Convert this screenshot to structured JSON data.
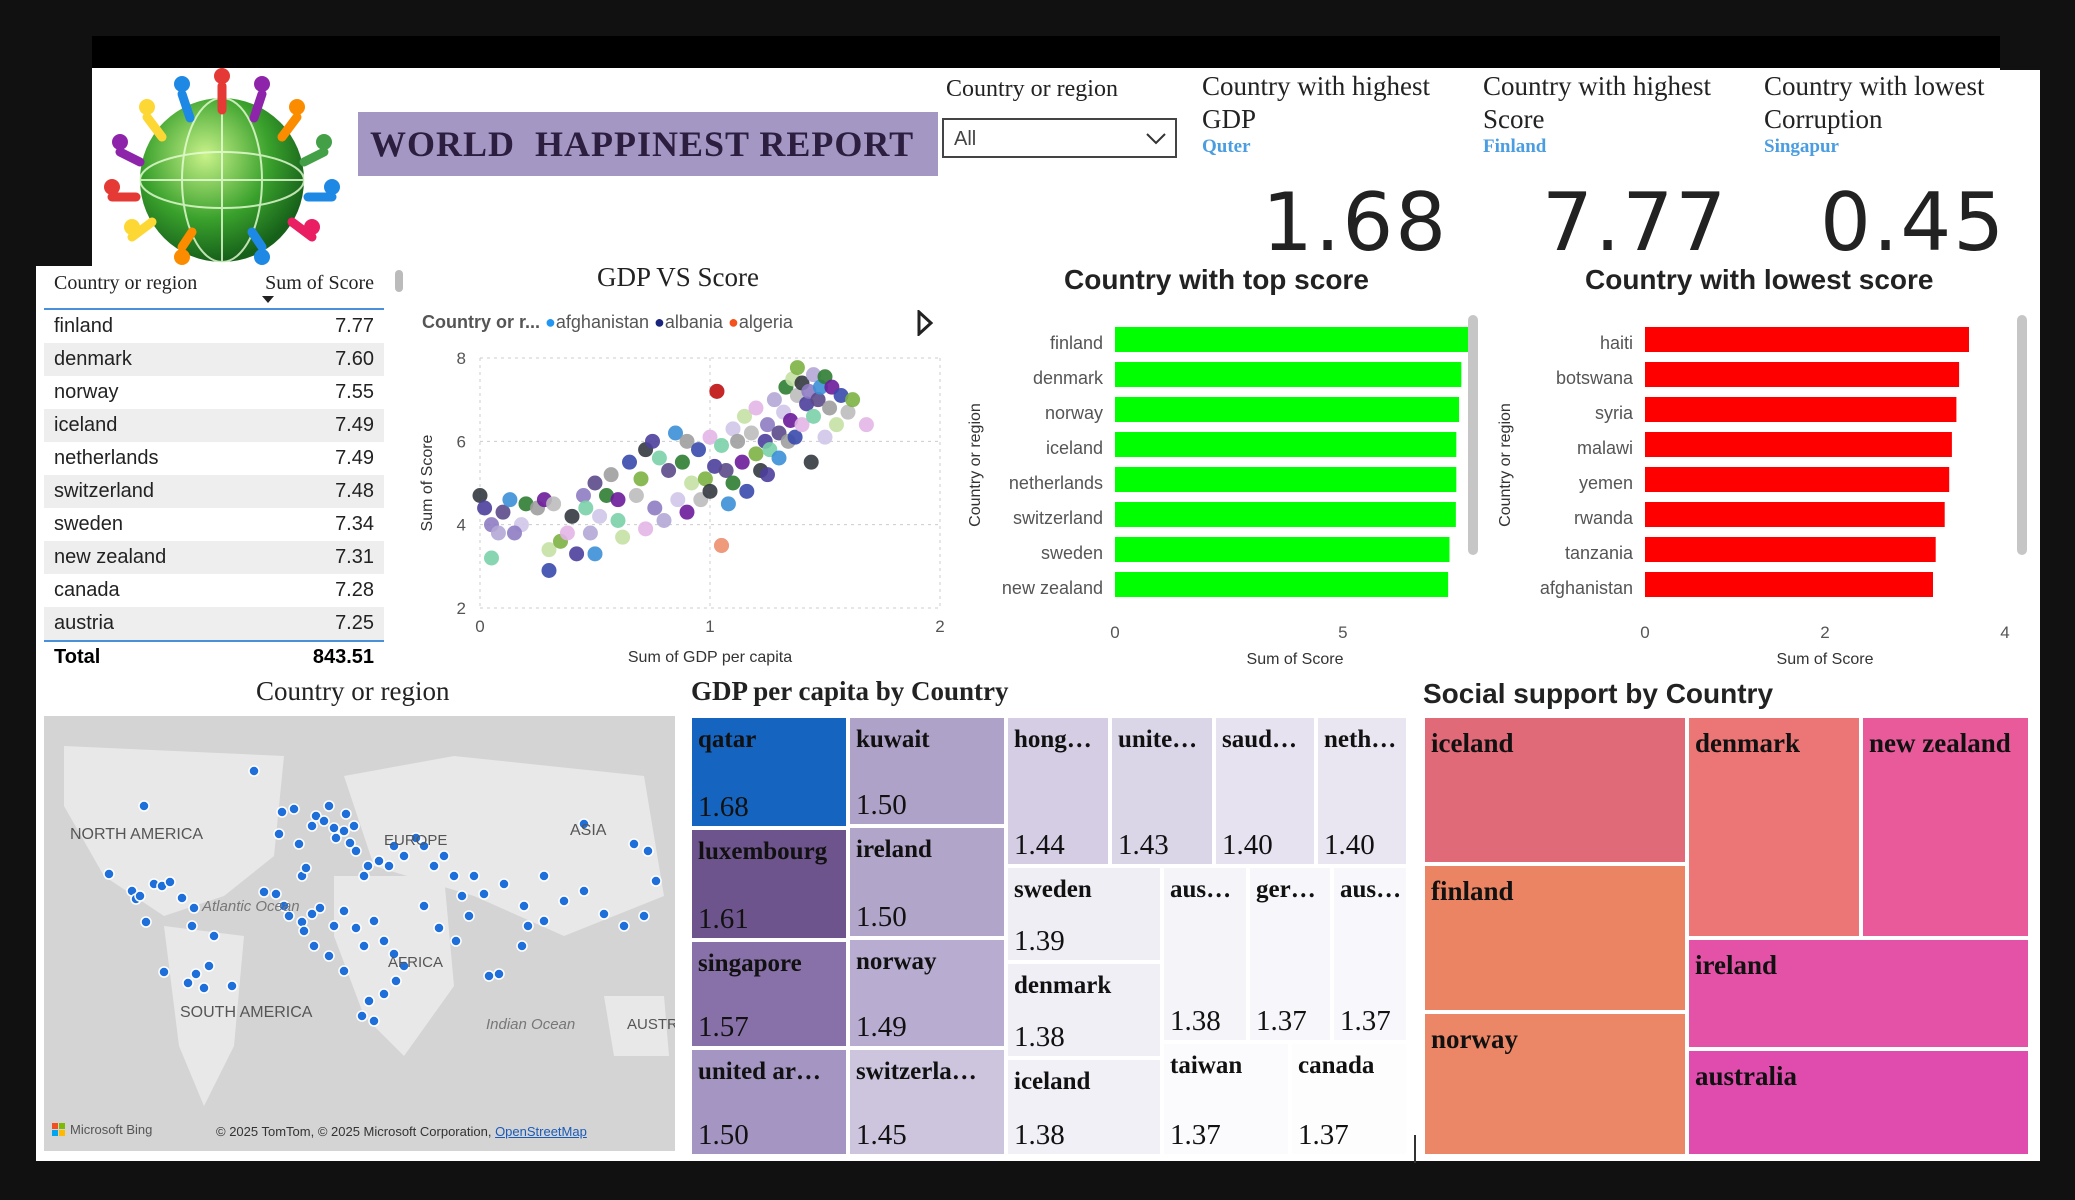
{
  "header": {
    "title": "WORLD  HAPPINEST REPORT",
    "slicer_label": "Country or region",
    "slicer_value": "All"
  },
  "kpis": [
    {
      "title": "Country with highest GDP",
      "country": "Quter",
      "value": "1.68"
    },
    {
      "title": "Country with highest Score",
      "country": "Finland",
      "value": "7.77"
    },
    {
      "title": "Country with lowest Corruption",
      "country": "Singapur",
      "value": "0.45"
    }
  ],
  "score_table": {
    "col_country": "Country or region",
    "col_score": "Sum of Score",
    "rows": [
      {
        "country": "finland",
        "score": "7.77"
      },
      {
        "country": "denmark",
        "score": "7.60"
      },
      {
        "country": "norway",
        "score": "7.55"
      },
      {
        "country": "iceland",
        "score": "7.49"
      },
      {
        "country": "netherlands",
        "score": "7.49"
      },
      {
        "country": "switzerland",
        "score": "7.48"
      },
      {
        "country": "sweden",
        "score": "7.34"
      },
      {
        "country": "new zealand",
        "score": "7.31"
      },
      {
        "country": "canada",
        "score": "7.28"
      },
      {
        "country": "austria",
        "score": "7.25"
      }
    ],
    "total_label": "Total",
    "total_value": "843.51"
  },
  "colors": {
    "top_bar": "#00ff00",
    "low_bar": "#ff0000",
    "title_bg": "#a597c4",
    "accent": "#4a9de0",
    "map_dot": "#1e6fd9"
  },
  "chart_data": [
    {
      "type": "scatter",
      "title": "GDP VS Score",
      "legend_title": "Country or r...",
      "legend": [
        "afghanistan",
        "albania",
        "algeria"
      ],
      "legend_colors": [
        "#2196f3",
        "#1a237e",
        "#f4511e"
      ],
      "xlabel": "Sum of GDP per capita",
      "ylabel": "Sum of Score",
      "xlim": [
        0,
        2
      ],
      "ylim": [
        2,
        8
      ],
      "xticks": [
        "0",
        "1",
        "2"
      ],
      "yticks": [
        "2",
        "4",
        "6",
        "8"
      ],
      "points": [
        [
          0.0,
          4.7
        ],
        [
          0.02,
          4.4
        ],
        [
          0.05,
          4.0
        ],
        [
          0.05,
          3.2
        ],
        [
          0.08,
          3.8
        ],
        [
          0.1,
          4.3
        ],
        [
          0.13,
          4.6
        ],
        [
          0.18,
          4.0
        ],
        [
          0.2,
          4.5
        ],
        [
          0.25,
          4.4
        ],
        [
          0.28,
          4.6
        ],
        [
          0.3,
          3.4
        ],
        [
          0.3,
          2.9
        ],
        [
          0.32,
          4.5
        ],
        [
          0.35,
          3.6
        ],
        [
          0.38,
          3.8
        ],
        [
          0.4,
          4.2
        ],
        [
          0.42,
          3.3
        ],
        [
          0.45,
          4.7
        ],
        [
          0.46,
          4.4
        ],
        [
          0.48,
          3.8
        ],
        [
          0.5,
          5.0
        ],
        [
          0.5,
          3.3
        ],
        [
          0.52,
          4.2
        ],
        [
          0.55,
          4.7
        ],
        [
          0.57,
          5.2
        ],
        [
          0.6,
          4.6
        ],
        [
          0.62,
          3.7
        ],
        [
          0.65,
          5.5
        ],
        [
          0.68,
          4.7
        ],
        [
          0.7,
          5.1
        ],
        [
          0.72,
          3.9
        ],
        [
          0.72,
          5.8
        ],
        [
          0.75,
          6.0
        ],
        [
          0.76,
          4.4
        ],
        [
          0.78,
          5.6
        ],
        [
          0.8,
          4.1
        ],
        [
          0.82,
          5.3
        ],
        [
          0.85,
          6.2
        ],
        [
          0.86,
          4.6
        ],
        [
          0.88,
          5.5
        ],
        [
          0.9,
          6.0
        ],
        [
          0.9,
          4.3
        ],
        [
          0.92,
          5.0
        ],
        [
          0.95,
          5.8
        ],
        [
          0.96,
          4.6
        ],
        [
          0.98,
          5.1
        ],
        [
          1.0,
          6.1
        ],
        [
          1.0,
          4.8
        ],
        [
          1.02,
          5.4
        ],
        [
          1.03,
          7.2
        ],
        [
          1.05,
          5.9
        ],
        [
          1.05,
          3.5
        ],
        [
          1.07,
          5.3
        ],
        [
          1.08,
          4.5
        ],
        [
          1.1,
          6.3
        ],
        [
          1.1,
          5.0
        ],
        [
          1.12,
          6.0
        ],
        [
          1.14,
          5.5
        ],
        [
          1.15,
          6.6
        ],
        [
          1.16,
          4.8
        ],
        [
          1.18,
          6.2
        ],
        [
          1.2,
          5.7
        ],
        [
          1.2,
          6.8
        ],
        [
          1.22,
          5.3
        ],
        [
          1.24,
          6.0
        ],
        [
          1.25,
          6.4
        ],
        [
          1.26,
          5.8
        ],
        [
          1.28,
          7.0
        ],
        [
          1.3,
          6.2
        ],
        [
          1.3,
          5.6
        ],
        [
          1.32,
          6.7
        ],
        [
          1.33,
          7.3
        ],
        [
          1.34,
          6.0
        ],
        [
          1.35,
          6.5
        ],
        [
          1.36,
          7.5
        ],
        [
          1.37,
          6.1
        ],
        [
          1.38,
          7.1
        ],
        [
          1.38,
          7.77
        ],
        [
          1.4,
          6.4
        ],
        [
          1.4,
          7.4
        ],
        [
          1.42,
          6.9
        ],
        [
          1.43,
          7.2
        ],
        [
          1.45,
          6.6
        ],
        [
          1.45,
          7.6
        ],
        [
          1.47,
          7.0
        ],
        [
          1.48,
          7.3
        ],
        [
          1.5,
          6.1
        ],
        [
          1.5,
          7.55
        ],
        [
          1.52,
          6.8
        ],
        [
          1.53,
          7.3
        ],
        [
          1.55,
          6.4
        ],
        [
          1.57,
          7.1
        ],
        [
          1.6,
          6.7
        ],
        [
          1.62,
          7.0
        ],
        [
          1.68,
          6.4
        ],
        [
          1.44,
          5.5
        ],
        [
          1.25,
          5.2
        ],
        [
          0.15,
          3.8
        ],
        [
          0.6,
          4.1
        ]
      ]
    },
    {
      "type": "bar",
      "orientation": "horizontal",
      "title": "Country with top score",
      "xlabel": "Sum of Score",
      "ylabel": "Country or region",
      "xlim": [
        0,
        7.9
      ],
      "xticks": [
        "0",
        "5"
      ],
      "categories": [
        "finland",
        "denmark",
        "norway",
        "iceland",
        "netherlands",
        "switzerland",
        "sweden",
        "new zealand"
      ],
      "values": [
        7.77,
        7.6,
        7.55,
        7.49,
        7.49,
        7.48,
        7.34,
        7.31
      ]
    },
    {
      "type": "bar",
      "orientation": "horizontal",
      "title": "Country with lowest score",
      "xlabel": "Sum of Score",
      "ylabel": "Country or region",
      "xlim": [
        0,
        4
      ],
      "xticks": [
        "0",
        "2",
        "4"
      ],
      "categories": [
        "haiti",
        "botswana",
        "syria",
        "malawi",
        "yemen",
        "rwanda",
        "tanzania",
        "afghanistan"
      ],
      "values": [
        3.6,
        3.49,
        3.46,
        3.41,
        3.38,
        3.33,
        3.23,
        3.2
      ]
    },
    {
      "type": "heatmap",
      "title": "GDP per capita by Country",
      "cells": [
        {
          "name": "qatar",
          "value": "1.68",
          "color": "#1565c0"
        },
        {
          "name": "luxembourg",
          "value": "1.61",
          "color": "#6e548c"
        },
        {
          "name": "singapore",
          "value": "1.57",
          "color": "#8870a8"
        },
        {
          "name": "united ar…",
          "value": "1.50",
          "color": "#a595c3"
        },
        {
          "name": "kuwait",
          "value": "1.50",
          "color": "#afa2c8"
        },
        {
          "name": "ireland",
          "value": "1.50",
          "color": "#b2a5ca"
        },
        {
          "name": "norway",
          "value": "1.49",
          "color": "#b8acd0"
        },
        {
          "name": "switzerla…",
          "value": "1.45",
          "color": "#cdc5de"
        },
        {
          "name": "hong…",
          "value": "1.44",
          "color": "#d4cde3"
        },
        {
          "name": "unite…",
          "value": "1.43",
          "color": "#dbd5e8"
        },
        {
          "name": "saud…",
          "value": "1.40",
          "color": "#e6e2ef"
        },
        {
          "name": "neth…",
          "value": "1.40",
          "color": "#e9e6f1"
        },
        {
          "name": "sweden",
          "value": "1.39",
          "color": "#f0eef5"
        },
        {
          "name": "denmark",
          "value": "1.38",
          "color": "#f1eff6"
        },
        {
          "name": "iceland",
          "value": "1.38",
          "color": "#f2f0f7"
        },
        {
          "name": "aus…",
          "value": "1.38",
          "color": "#f5f4f9"
        },
        {
          "name": "ger…",
          "value": "1.37",
          "color": "#f7f6fa"
        },
        {
          "name": "aus…",
          "value": "1.37",
          "color": "#f8f7fb"
        },
        {
          "name": "taiwan",
          "value": "1.37",
          "color": "#fbfafc"
        },
        {
          "name": "canada",
          "value": "1.37",
          "color": "#fdfdfe"
        }
      ]
    },
    {
      "type": "heatmap",
      "title": "Social support by Country",
      "cells": [
        {
          "name": "iceland",
          "color": "#e06a78"
        },
        {
          "name": "finland",
          "color": "#ea8462"
        },
        {
          "name": "norway",
          "color": "#eb8666"
        },
        {
          "name": "denmark",
          "color": "#ec7676"
        },
        {
          "name": "new zealand",
          "color": "#e85a9a"
        },
        {
          "name": "ireland",
          "color": "#e352a6"
        },
        {
          "name": "australia",
          "color": "#e04cae"
        }
      ]
    }
  ],
  "map": {
    "title": "Country or region",
    "labels": {
      "north_america": "NORTH AMERICA",
      "atlantic": "Atlantic Ocean",
      "europe": "EUROPE",
      "asia": "ASIA",
      "africa": "AFRICA",
      "south_america": "SOUTH AMERICA",
      "indian": "Indian Ocean",
      "australia": "AUSTR"
    },
    "attribution_brand": "Microsoft Bing",
    "attribution": "© 2025 TomTom, © 2025 Microsoft Corporation,",
    "attribution_link": "OpenStreetMap"
  }
}
